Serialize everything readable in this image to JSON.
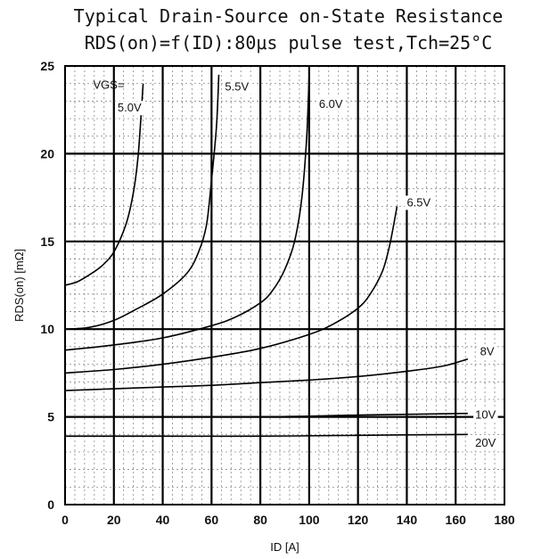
{
  "chart_data": {
    "type": "line",
    "title": "Typical Drain-Source on-State Resistance",
    "subtitle": "RDS(on)=f(ID):80μs pulse test,Tch=25°C",
    "xlabel": "ID [A]",
    "ylabel": "RDS(on) [mΩ]",
    "xlim": [
      0,
      180
    ],
    "ylim": [
      0,
      25
    ],
    "x_ticks": [
      "0",
      "20",
      "40",
      "60",
      "80",
      "100",
      "120",
      "140",
      "160",
      "180"
    ],
    "y_ticks": [
      "0",
      "5",
      "10",
      "15",
      "20",
      "25"
    ],
    "grid": true,
    "legend_header": "VGS=",
    "series": [
      {
        "name": "5.0V",
        "x": [
          0,
          5,
          10,
          15,
          20,
          25,
          28,
          30,
          32
        ],
        "y": [
          12.5,
          12.7,
          13.1,
          13.6,
          14.4,
          16.0,
          17.8,
          20.0,
          24.0
        ]
      },
      {
        "name": "5.5V",
        "x": [
          0,
          10,
          20,
          30,
          40,
          50,
          55,
          58,
          60,
          62,
          63
        ],
        "y": [
          10.0,
          10.1,
          10.5,
          11.2,
          12.0,
          13.2,
          14.5,
          16.0,
          18.5,
          21.5,
          24.5
        ]
      },
      {
        "name": "6.0V",
        "x": [
          0,
          20,
          40,
          60,
          70,
          80,
          85,
          90,
          94,
          97,
          99,
          100
        ],
        "y": [
          8.8,
          9.1,
          9.5,
          10.2,
          10.7,
          11.5,
          12.2,
          13.4,
          15.0,
          17.5,
          21.0,
          24.5
        ]
      },
      {
        "name": "6.5V",
        "x": [
          0,
          20,
          40,
          60,
          80,
          100,
          110,
          120,
          125,
          130,
          133,
          136
        ],
        "y": [
          7.5,
          7.7,
          8.0,
          8.4,
          8.9,
          9.7,
          10.3,
          11.2,
          12.0,
          13.3,
          14.8,
          17.0
        ]
      },
      {
        "name": "8V",
        "x": [
          0,
          20,
          40,
          60,
          80,
          100,
          120,
          140,
          155,
          165
        ],
        "y": [
          6.5,
          6.6,
          6.7,
          6.8,
          6.95,
          7.1,
          7.3,
          7.6,
          7.9,
          8.3
        ]
      },
      {
        "name": "10V",
        "x": [
          0,
          40,
          80,
          120,
          165
        ],
        "y": [
          5.0,
          5.0,
          5.0,
          5.1,
          5.2
        ]
      },
      {
        "name": "20V",
        "x": [
          0,
          40,
          80,
          120,
          165
        ],
        "y": [
          3.9,
          3.9,
          3.9,
          3.95,
          4.0
        ]
      }
    ]
  }
}
